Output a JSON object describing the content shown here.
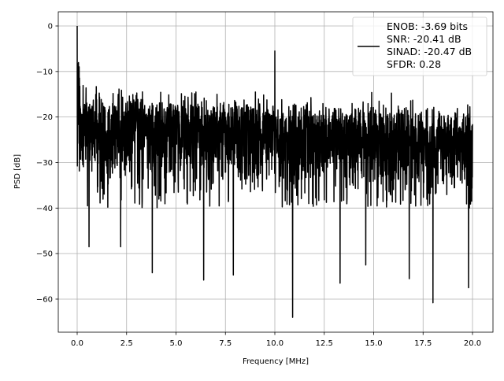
{
  "chart_data": {
    "type": "line",
    "xlabel": "Frequency [MHz]",
    "ylabel": "PSD [dB]",
    "xlim": [
      -0.9,
      21.1
    ],
    "ylim": [
      -67.5,
      3.1
    ],
    "xticks": [
      0.0,
      2.5,
      5.0,
      7.5,
      10.0,
      12.5,
      15.0,
      17.5,
      20.0
    ],
    "xtick_labels": [
      "0.0",
      "2.5",
      "5.0",
      "7.5",
      "10.0",
      "12.5",
      "15.0",
      "17.5",
      "20.0"
    ],
    "yticks": [
      0,
      -10,
      -20,
      -30,
      -40,
      -50,
      -60
    ],
    "ytick_labels": [
      "0",
      "−10",
      "−20",
      "−30",
      "−40",
      "−50",
      "−60"
    ],
    "grid": true,
    "legend_position": "top-right",
    "legend_lines": [
      "ENOB: -3.69 bits",
      "SNR: -20.41 dB",
      "SINAD: -20.47 dB",
      "SFDR: 0.28"
    ],
    "series_color": "#000000",
    "x_range": [
      0,
      20
    ],
    "noise_ceiling_db": [
      -13,
      -17
    ],
    "noise_floor_db": -40,
    "peaks": [
      {
        "x": 0.0,
        "y": 0.0
      },
      {
        "x": 10.0,
        "y": -5.5
      }
    ],
    "dips": [
      {
        "x": 0.6,
        "y": -48.5
      },
      {
        "x": 2.2,
        "y": -48.5
      },
      {
        "x": 3.8,
        "y": -54.2
      },
      {
        "x": 6.4,
        "y": -55.8
      },
      {
        "x": 7.9,
        "y": -54.7
      },
      {
        "x": 10.9,
        "y": -64.0
      },
      {
        "x": 13.3,
        "y": -56.5
      },
      {
        "x": 14.6,
        "y": -52.5
      },
      {
        "x": 16.8,
        "y": -55.5
      },
      {
        "x": 18.0,
        "y": -60.8
      },
      {
        "x": 19.8,
        "y": -57.5
      }
    ]
  }
}
